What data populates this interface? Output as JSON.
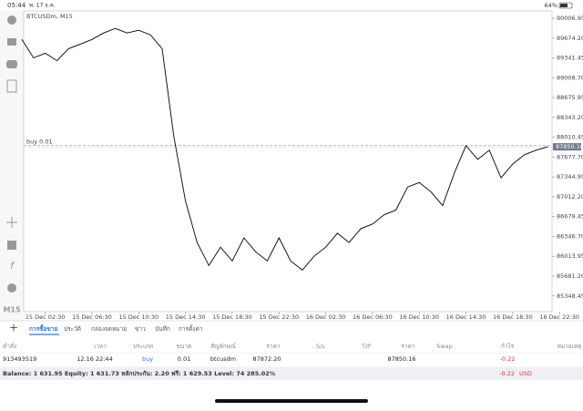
{
  "status_bar": {
    "time": "05:44",
    "date": "พ. 17 ธ.ค.",
    "battery": "64%"
  },
  "toolbar": {
    "timeframe": "M15"
  },
  "chart_data": {
    "type": "line",
    "title": "BTCUSDm, M15",
    "color": "#000000",
    "categories": [
      null,
      null,
      "15 Dec 02:30",
      null,
      null,
      null,
      "15 Dec 06:30",
      null,
      null,
      null,
      "15 Dec 10:30",
      null,
      null,
      null,
      "15 Dec 14:30",
      null,
      null,
      null,
      "15 Dec 18:30",
      null,
      null,
      null,
      "15 Dec 22:30",
      null,
      null,
      null,
      "16 Dec 02:30",
      null,
      null,
      null,
      "16 Dec 06:30",
      null,
      null,
      null,
      "16 Dec 10:30",
      null,
      null,
      null,
      "16 Dec 14:30",
      null,
      null,
      null,
      "16 Dec 18:30",
      null,
      null,
      null,
      "16 Dec 22:30"
    ],
    "values": [
      89652,
      89342,
      89420,
      89296,
      89497,
      89574,
      89652,
      89760,
      89837,
      89760,
      89806,
      89729,
      89497,
      88026,
      86943,
      86246,
      85859,
      86168,
      85936,
      86323,
      86091,
      85936,
      86323,
      85936,
      85782,
      86014,
      86168,
      86401,
      86246,
      86478,
      86556,
      86710,
      86788,
      87175,
      87252,
      87097,
      86865,
      87407,
      87871,
      87639,
      87794,
      87330,
      87562,
      87717,
      87794,
      87850,
      null
    ],
    "ylim": [
      85085,
      90130
    ],
    "yticks": [
      {
        "value": 85348.45,
        "label": "85348.45"
      },
      {
        "value": 85681.2,
        "label": "85681.20"
      },
      {
        "value": 86013.95,
        "label": "86013.95"
      },
      {
        "value": 86346.7,
        "label": "86346.70"
      },
      {
        "value": 86679.45,
        "label": "86679.45"
      },
      {
        "value": 87012.2,
        "label": "87012.20"
      },
      {
        "value": 87344.95,
        "label": "87344.95"
      },
      {
        "value": 87677.7,
        "label": "87677.70"
      },
      {
        "value": 88010.45,
        "label": "88010.45"
      },
      {
        "value": 88343.2,
        "label": "88343.20"
      },
      {
        "value": 88675.95,
        "label": "88675.95"
      },
      {
        "value": 89008.7,
        "label": "89008.70"
      },
      {
        "value": 89341.45,
        "label": "89341.45"
      },
      {
        "value": 89674.2,
        "label": "89674.20"
      },
      {
        "value": 90006.95,
        "label": "90006.95"
      }
    ],
    "order_line": {
      "label": "buy 0.01",
      "value": 87872.2
    },
    "last_price": 87850.16
  },
  "tabs": [
    "การซื้อขาย",
    "ประวัติ",
    "กล่องจดหมาย",
    "ข่าว",
    "บันทึก",
    "การตั้งค่า"
  ],
  "table": {
    "headers": [
      "คำสั่ง",
      "เวลา",
      "ประเภท",
      "ขนาด",
      "สัญลักษณ์",
      "ราคา",
      "S/L",
      "T/P",
      "ราคา",
      "Swap",
      "กำไร",
      "หมายเหตุ"
    ],
    "row": {
      "order": "913493519",
      "time": "12.16 22:44",
      "type": "buy",
      "volume": "0.01",
      "symbol": "btcusdm",
      "open_price": "87872.20",
      "price": "87850.16",
      "profit": "-0.22"
    }
  },
  "footer": {
    "summary": "Balance: 1 631.95 Equity: 1 631.73 หลักประกัน: 2.20 ฟรี: 1 629.53 Level: 74 285.02%",
    "profit": "-0.22",
    "currency": "USD"
  }
}
